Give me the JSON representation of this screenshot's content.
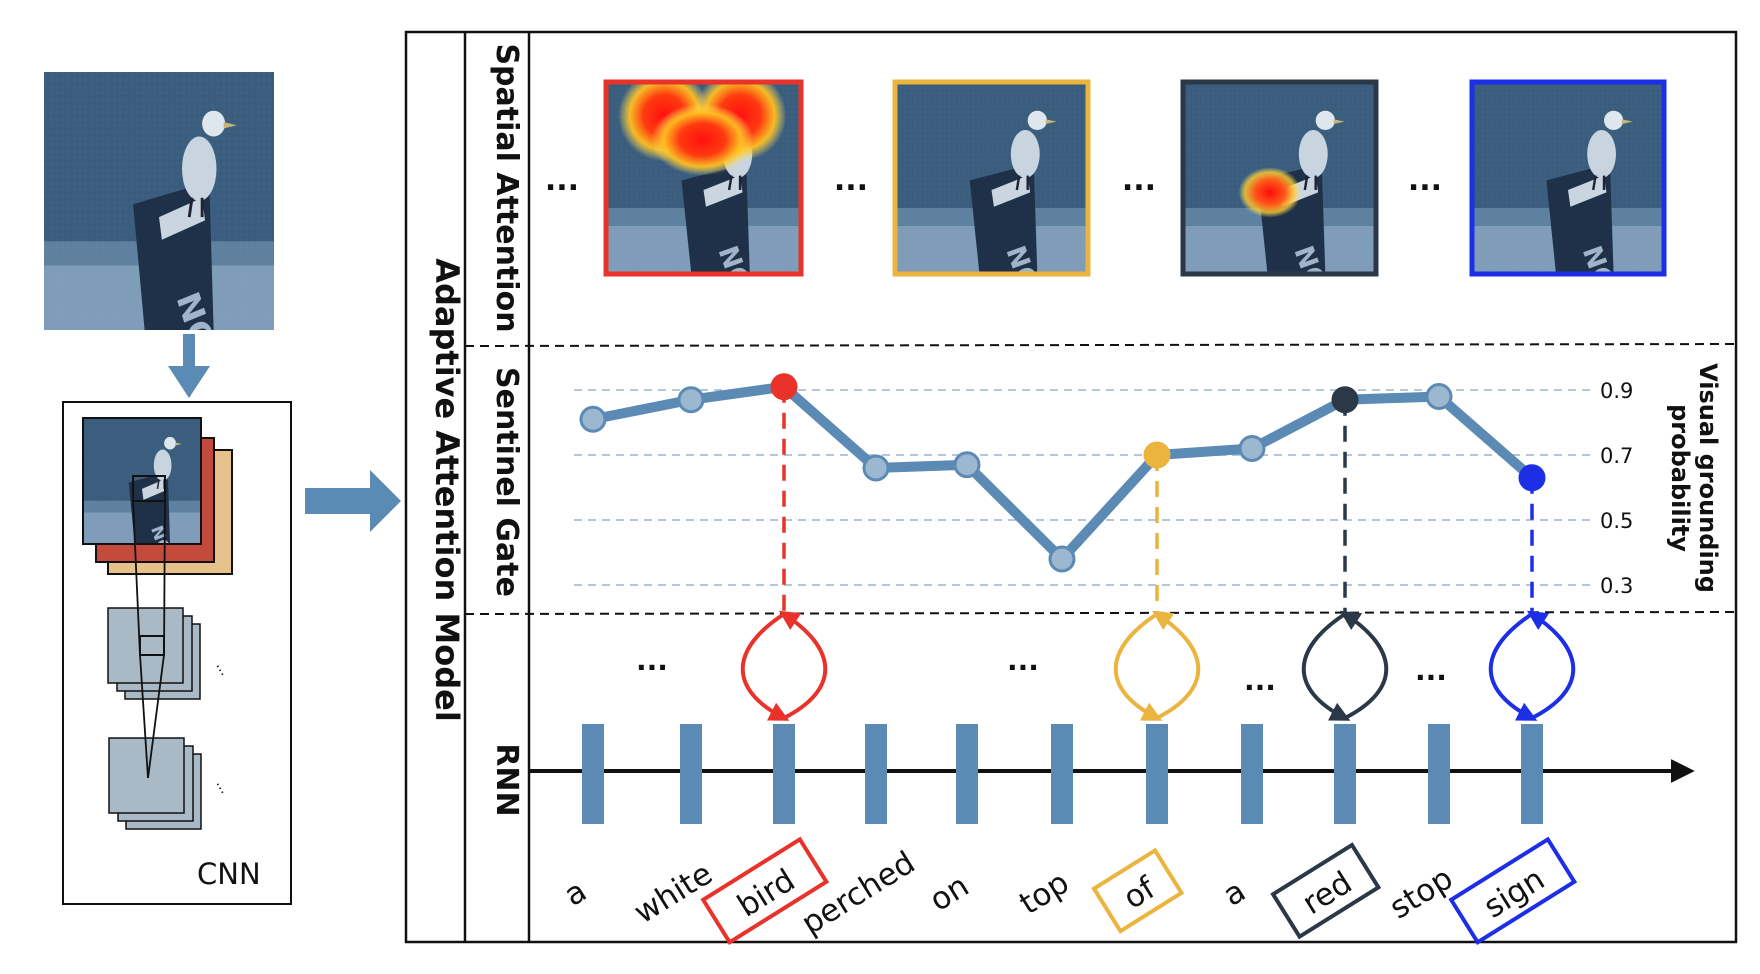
{
  "model_label": "Adaptive  Attention  Model",
  "cnn": {
    "label": "CNN",
    "dots": "..."
  },
  "rows": {
    "spatial": "Spatial Attention",
    "sentinel": "Sentinel Gate",
    "rnn": "RNN"
  },
  "ellipsis": "...",
  "axis": {
    "title_line1": "Visual  grounding",
    "title_line2": "probability",
    "ticks": [
      "0.9",
      "0.7",
      "0.5",
      "0.3"
    ]
  },
  "colors": {
    "bird": "#e8322a",
    "of": "#eab43e",
    "red": "#2b3848",
    "sign": "#1c2ee6",
    "line": "#5b8bb4",
    "node": "#9cb7d0",
    "gridline": "#9ab4cf"
  },
  "words": [
    "a",
    "white",
    "bird",
    "perched",
    "on",
    "top",
    "of",
    "a",
    "red",
    "stop",
    "sign"
  ],
  "highlighted": [
    {
      "word": "bird",
      "index": 2,
      "color": "#e8322a",
      "attention": "top"
    },
    {
      "word": "of",
      "index": 6,
      "color": "#eab43e",
      "attention": "none"
    },
    {
      "word": "red",
      "index": 8,
      "color": "#2b3848",
      "attention": "sign"
    },
    {
      "word": "sign",
      "index": 10,
      "color": "#1c2ee6",
      "attention": "none"
    }
  ],
  "chart_data": {
    "type": "line",
    "categories": [
      "a",
      "white",
      "bird",
      "perched",
      "on",
      "top",
      "of",
      "a",
      "red",
      "stop",
      "sign"
    ],
    "values": [
      0.81,
      0.87,
      0.91,
      0.66,
      0.67,
      0.38,
      0.7,
      0.72,
      0.87,
      0.88,
      0.63
    ],
    "ylim": [
      0.25,
      1.0
    ],
    "gridlines": [
      0.9,
      0.7,
      0.5,
      0.3
    ],
    "ylabel": "Visual  grounding probability"
  }
}
